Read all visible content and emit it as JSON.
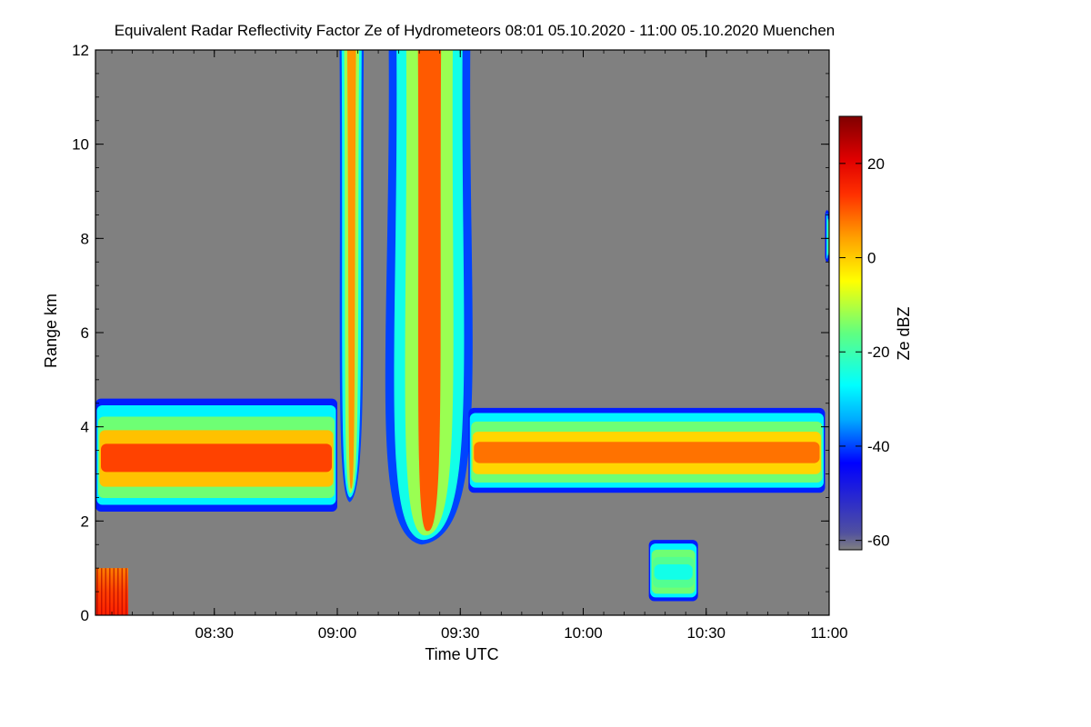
{
  "chart_data": {
    "type": "heatmap",
    "title": "Equivalent Radar Reflectivity Factor Ze of Hydrometeors   08:01 05.10.2020 - 11:00 05.10.2020 Muenchen",
    "xlabel": "Time UTC",
    "ylabel": "Range km",
    "x_range": [
      "08:01",
      "11:00"
    ],
    "ylim": [
      0,
      12
    ],
    "x_ticks": [
      "08:30",
      "09:00",
      "09:30",
      "10:00",
      "10:30",
      "11:00"
    ],
    "y_ticks": [
      "0",
      "2",
      "4",
      "6",
      "8",
      "10",
      "12"
    ],
    "colorbar": {
      "label": "Ze dBZ",
      "range": [
        -62,
        30
      ],
      "ticks": [
        "20",
        "0",
        "-20",
        "-40",
        "-60"
      ]
    },
    "background_color": "#808080",
    "features": [
      {
        "kind": "cloud_layer",
        "time": [
          "08:01",
          "09:00"
        ],
        "base_km": 2.2,
        "top_km": 4.6,
        "peak_dbz": 12
      },
      {
        "kind": "precipitation",
        "time": [
          "08:01",
          "08:09"
        ],
        "base_km": 0,
        "top_km": 1.0,
        "peak_dbz": 20
      },
      {
        "kind": "plume",
        "time": [
          "09:01",
          "09:06"
        ],
        "base_km": 2.4,
        "top_km": 12,
        "peak_dbz": 5
      },
      {
        "kind": "plume",
        "time": [
          "09:13",
          "09:32"
        ],
        "base_km": 1.5,
        "top_km": 12,
        "peak_dbz": 10
      },
      {
        "kind": "cloud_layer",
        "time": [
          "09:32",
          "10:59"
        ],
        "base_km": 2.6,
        "top_km": 4.4,
        "peak_dbz": 8
      },
      {
        "kind": "low_echo",
        "time": [
          "10:16",
          "10:28"
        ],
        "base_km": 0.3,
        "top_km": 1.6,
        "peak_dbz": -25
      },
      {
        "kind": "high_echo",
        "time": [
          "10:59",
          "11:00"
        ],
        "base_km": 7.5,
        "top_km": 8.6,
        "peak_dbz": -25
      }
    ]
  }
}
